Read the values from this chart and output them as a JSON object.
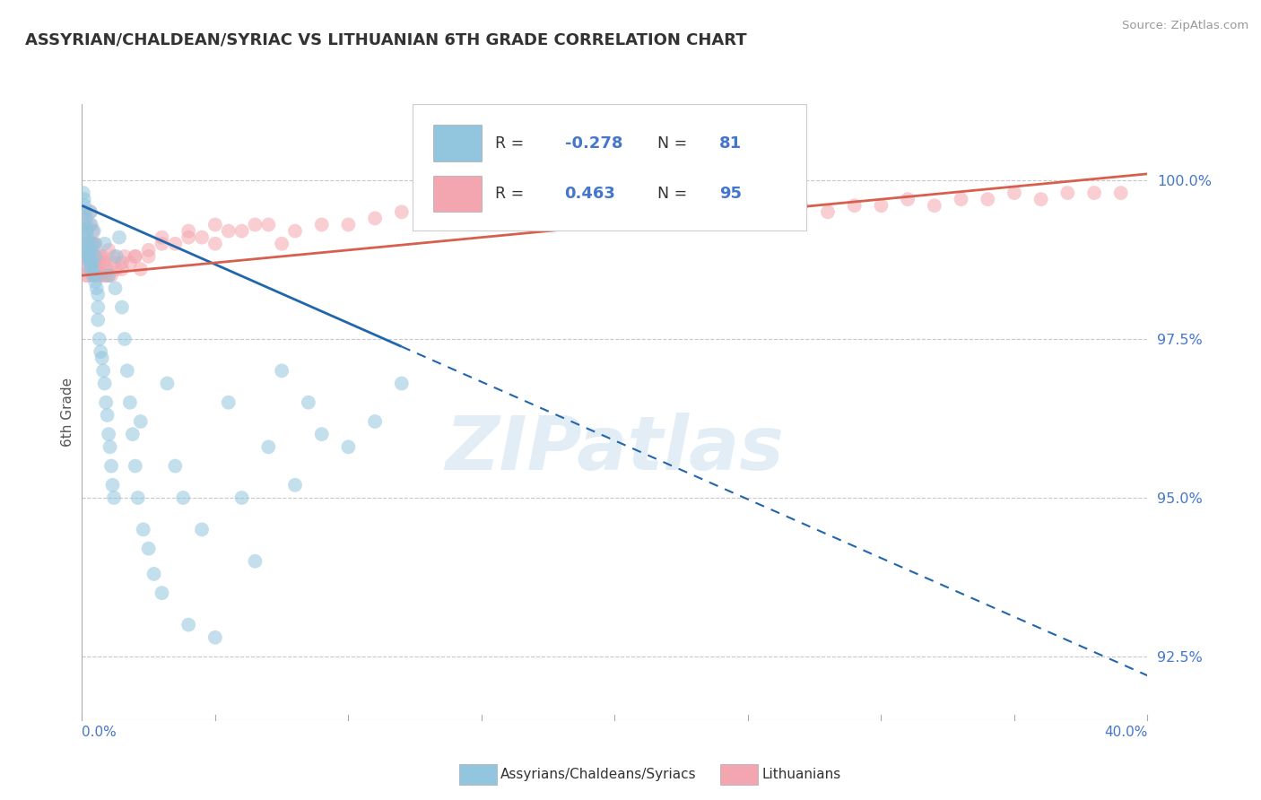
{
  "title": "ASSYRIAN/CHALDEAN/SYRIAC VS LITHUANIAN 6TH GRADE CORRELATION CHART",
  "source": "Source: ZipAtlas.com",
  "ylabel": "6th Grade",
  "ylabel_right_ticks": [
    92.5,
    95.0,
    97.5,
    100.0
  ],
  "ylabel_right_labels": [
    "92.5%",
    "95.0%",
    "97.5%",
    "100.0%"
  ],
  "xlim": [
    0.0,
    40.0
  ],
  "ylim": [
    91.5,
    101.2
  ],
  "blue_R": -0.278,
  "blue_N": 81,
  "pink_R": 0.463,
  "pink_N": 95,
  "blue_color": "#92c5de",
  "pink_color": "#f4a6b0",
  "blue_trend_color": "#2166ac",
  "pink_trend_color": "#d6604d",
  "watermark": "ZIPatlas",
  "legend_label_blue": "Assyrians/Chaldeans/Syriacs",
  "legend_label_pink": "Lithuanians",
  "background_color": "#ffffff",
  "grid_color": "#c8c8c8",
  "blue_trend_x0": 0.0,
  "blue_trend_y0": 99.6,
  "blue_trend_x1": 40.0,
  "blue_trend_y1": 92.2,
  "blue_solid_x1": 12.0,
  "pink_trend_x0": 0.0,
  "pink_trend_y0": 98.5,
  "pink_trend_x1": 40.0,
  "pink_trend_y1": 100.1,
  "blue_scatter_x": [
    0.05,
    0.08,
    0.1,
    0.12,
    0.15,
    0.15,
    0.18,
    0.2,
    0.22,
    0.25,
    0.25,
    0.28,
    0.3,
    0.3,
    0.32,
    0.35,
    0.35,
    0.38,
    0.4,
    0.42,
    0.45,
    0.48,
    0.5,
    0.5,
    0.55,
    0.6,
    0.6,
    0.65,
    0.7,
    0.75,
    0.8,
    0.85,
    0.85,
    0.9,
    0.95,
    1.0,
    1.0,
    1.05,
    1.1,
    1.15,
    1.2,
    1.25,
    1.3,
    1.4,
    1.5,
    1.6,
    1.7,
    1.8,
    1.9,
    2.0,
    2.1,
    2.2,
    2.3,
    2.5,
    2.7,
    3.0,
    3.2,
    3.5,
    3.8,
    4.0,
    4.5,
    5.0,
    5.5,
    6.0,
    6.5,
    7.0,
    7.5,
    8.0,
    8.5,
    9.0,
    10.0,
    11.0,
    12.0,
    0.05,
    0.1,
    0.15,
    0.2,
    0.3,
    0.4,
    0.5,
    0.6
  ],
  "blue_scatter_y": [
    99.8,
    99.7,
    99.6,
    99.5,
    99.4,
    99.3,
    99.2,
    99.1,
    99.0,
    98.9,
    98.8,
    98.8,
    98.7,
    98.6,
    99.5,
    99.3,
    99.0,
    98.9,
    98.7,
    98.5,
    99.2,
    99.0,
    98.8,
    98.5,
    98.3,
    98.0,
    97.8,
    97.5,
    97.3,
    97.2,
    97.0,
    96.8,
    99.0,
    96.5,
    96.3,
    96.0,
    98.5,
    95.8,
    95.5,
    95.2,
    95.0,
    98.3,
    98.8,
    99.1,
    98.0,
    97.5,
    97.0,
    96.5,
    96.0,
    95.5,
    95.0,
    96.2,
    94.5,
    94.2,
    93.8,
    93.5,
    96.8,
    95.5,
    95.0,
    93.0,
    94.5,
    92.8,
    96.5,
    95.0,
    94.0,
    95.8,
    97.0,
    95.2,
    96.5,
    96.0,
    95.8,
    96.2,
    96.8,
    99.0,
    98.9,
    99.2,
    98.8,
    98.7,
    98.6,
    98.4,
    98.2
  ],
  "pink_scatter_x": [
    0.05,
    0.08,
    0.1,
    0.12,
    0.15,
    0.15,
    0.2,
    0.22,
    0.25,
    0.28,
    0.3,
    0.3,
    0.32,
    0.35,
    0.38,
    0.4,
    0.42,
    0.45,
    0.5,
    0.5,
    0.55,
    0.6,
    0.65,
    0.7,
    0.75,
    0.8,
    0.85,
    0.9,
    0.95,
    1.0,
    1.1,
    1.2,
    1.3,
    1.5,
    1.6,
    1.8,
    2.0,
    2.2,
    2.5,
    3.0,
    3.5,
    4.0,
    4.5,
    5.0,
    5.5,
    6.0,
    6.5,
    7.0,
    7.5,
    8.0,
    9.0,
    10.0,
    11.0,
    12.0,
    13.0,
    14.0,
    15.0,
    16.0,
    17.0,
    18.0,
    19.0,
    20.0,
    21.0,
    22.0,
    23.0,
    24.0,
    25.0,
    26.0,
    27.0,
    28.0,
    29.0,
    30.0,
    31.0,
    32.0,
    33.0,
    34.0,
    35.0,
    36.0,
    37.0,
    38.0,
    39.0,
    0.35,
    0.4,
    0.5,
    0.6,
    0.7,
    0.8,
    1.0,
    1.2,
    1.5,
    2.0,
    2.5,
    3.0,
    4.0,
    5.0
  ],
  "pink_scatter_y": [
    99.5,
    99.3,
    99.0,
    98.8,
    99.2,
    98.5,
    98.7,
    98.5,
    99.0,
    98.8,
    99.3,
    98.6,
    99.5,
    98.8,
    99.0,
    99.2,
    98.5,
    98.8,
    99.0,
    98.6,
    98.8,
    98.5,
    98.7,
    98.5,
    98.8,
    98.5,
    98.7,
    98.5,
    98.6,
    98.5,
    98.5,
    98.7,
    98.6,
    98.7,
    98.8,
    98.7,
    98.8,
    98.6,
    98.8,
    99.0,
    99.0,
    99.1,
    99.1,
    99.0,
    99.2,
    99.2,
    99.3,
    99.3,
    99.0,
    99.2,
    99.3,
    99.3,
    99.4,
    99.5,
    99.5,
    99.4,
    99.5,
    99.5,
    99.5,
    99.5,
    99.6,
    99.5,
    99.5,
    99.6,
    99.5,
    99.6,
    99.5,
    99.5,
    99.6,
    99.5,
    99.6,
    99.6,
    99.7,
    99.6,
    99.7,
    99.7,
    99.8,
    99.7,
    99.8,
    99.8,
    99.8,
    98.8,
    99.0,
    98.7,
    98.6,
    98.8,
    98.7,
    98.9,
    98.8,
    98.6,
    98.8,
    98.9,
    99.1,
    99.2,
    99.3
  ]
}
